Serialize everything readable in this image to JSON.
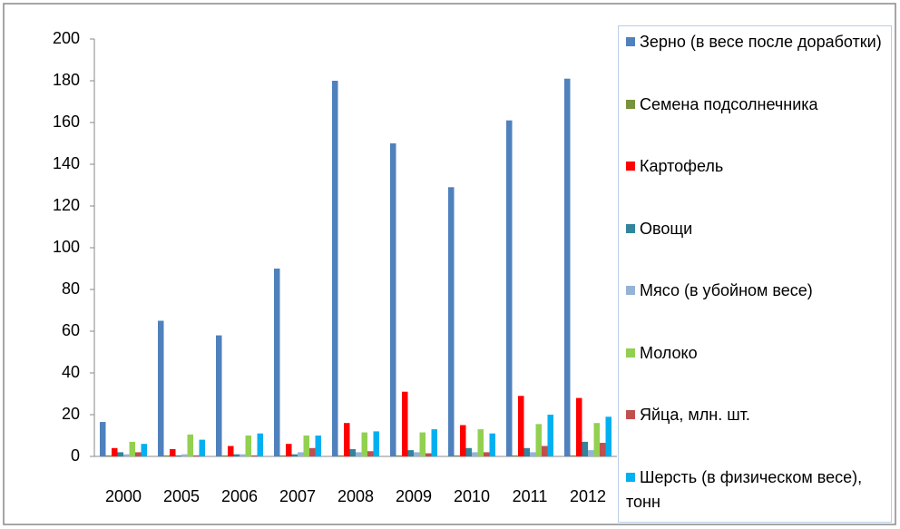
{
  "chart_data": {
    "type": "bar",
    "categories": [
      "2000",
      "2005",
      "2006",
      "2007",
      "2008",
      "2009",
      "2010",
      "2011",
      "2012"
    ],
    "series": [
      {
        "name": "Зерно (в весе после доработки)",
        "color": "#4f81bd",
        "values": [
          16.5,
          65,
          58,
          90,
          180,
          150,
          129,
          161,
          181
        ]
      },
      {
        "name": "Семена подсолнечника",
        "color": "#77933c",
        "values": [
          0.5,
          0.5,
          0.5,
          0.5,
          0.5,
          0.5,
          0.5,
          0.5,
          0.5
        ]
      },
      {
        "name": "Картофель",
        "color": "#ff0000",
        "values": [
          4,
          3.5,
          5,
          6,
          16,
          31,
          15,
          29,
          28
        ]
      },
      {
        "name": "Овощи",
        "color": "#31859c",
        "values": [
          2,
          0.5,
          1,
          1,
          3.5,
          3,
          4,
          4,
          7
        ]
      },
      {
        "name": "Мясо (в убойном весе)",
        "color": "#95b3d7",
        "values": [
          1,
          1,
          1,
          2,
          2,
          2,
          2,
          2,
          3
        ]
      },
      {
        "name": "Молоко",
        "color": "#92d050",
        "values": [
          7,
          10.5,
          10,
          10,
          11.5,
          11.5,
          13,
          15.5,
          16
        ]
      },
      {
        "name": "Яйца, млн. шт.",
        "color": "#c0504d",
        "values": [
          2,
          0.5,
          0.5,
          4,
          2.5,
          1.5,
          2,
          5,
          6.5
        ]
      },
      {
        "name": "Шерсть (в физическом весе), тонн",
        "color": "#00b0f0",
        "values": [
          6,
          8,
          11,
          10,
          12,
          13,
          11,
          20,
          19
        ]
      }
    ],
    "ylim": [
      0,
      200
    ],
    "yticks": [
      0,
      20,
      40,
      60,
      80,
      100,
      120,
      140,
      160,
      180,
      200
    ],
    "grid": false,
    "legend": "right"
  }
}
